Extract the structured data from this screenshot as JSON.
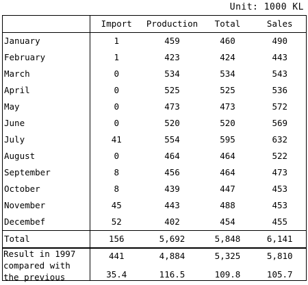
{
  "unit_label": "Unit: 1000 KL",
  "columns": {
    "blank": "",
    "import": "Import",
    "production": "Production",
    "total": "Total",
    "sales": "Sales"
  },
  "rows": [
    {
      "month": "January",
      "import": "1",
      "production": "459",
      "total": "460",
      "sales": "490"
    },
    {
      "month": "February",
      "import": "1",
      "production": "423",
      "total": "424",
      "sales": "443"
    },
    {
      "month": "March",
      "import": "0",
      "production": "534",
      "total": "534",
      "sales": "543"
    },
    {
      "month": "April",
      "import": "0",
      "production": "525",
      "total": "525",
      "sales": "536"
    },
    {
      "month": "May",
      "import": "0",
      "production": "473",
      "total": "473",
      "sales": "572"
    },
    {
      "month": "June",
      "import": "0",
      "production": "520",
      "total": "520",
      "sales": "569"
    },
    {
      "month": "July",
      "import": "41",
      "production": "554",
      "total": "595",
      "sales": "632"
    },
    {
      "month": "August",
      "import": "0",
      "production": "464",
      "total": "464",
      "sales": "522"
    },
    {
      "month": "September",
      "import": "8",
      "production": "456",
      "total": "464",
      "sales": "473"
    },
    {
      "month": "October",
      "import": "8",
      "production": "439",
      "total": "447",
      "sales": "453"
    },
    {
      "month": "November",
      "import": "45",
      "production": "443",
      "total": "488",
      "sales": "453"
    },
    {
      "month": "Decembef",
      "import": "52",
      "production": "402",
      "total": "454",
      "sales": "455"
    }
  ],
  "total_row": {
    "label": "Total",
    "import": "156",
    "production": "5,692",
    "total": "5,848",
    "sales": "6,141"
  },
  "result_row": {
    "label_line1": "Result in 1997",
    "label_line2": "compared with",
    "label_line3": "the previous",
    "import": "441",
    "production": "4,884",
    "total": "5,325",
    "sales": "5,810"
  },
  "compare_row": {
    "import": "35.4",
    "production": "116.5",
    "total": "109.8",
    "sales": "105.7"
  }
}
